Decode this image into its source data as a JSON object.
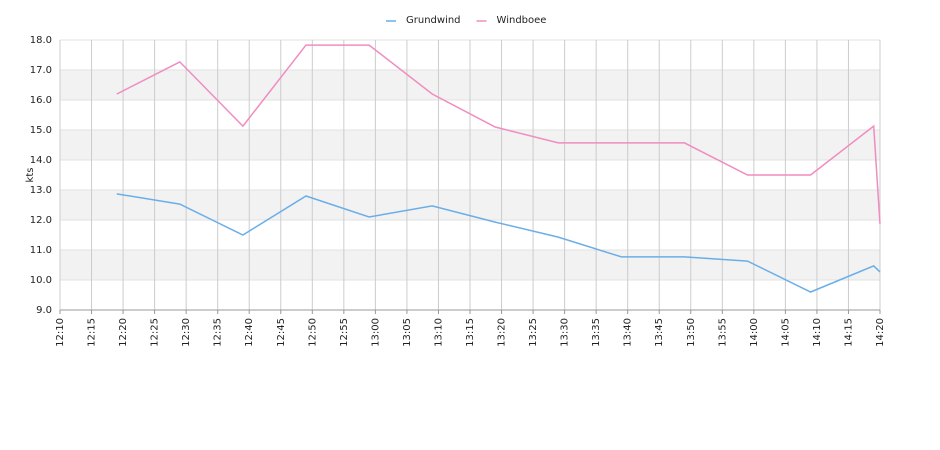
{
  "chart_data": {
    "type": "line",
    "y_label": "kts",
    "x": [
      "12:19",
      "12:29",
      "12:39",
      "12:49",
      "12:59",
      "13:09",
      "13:19",
      "13:29",
      "13:39",
      "13:49",
      "13:59",
      "14:09",
      "14:19",
      "14:20"
    ],
    "series": [
      {
        "name": "Grundwind",
        "color": "#6aaee8",
        "values": [
          12.87,
          12.53,
          11.5,
          12.8,
          12.1,
          12.47,
          11.93,
          11.43,
          10.77,
          10.77,
          10.63,
          9.6,
          10.47,
          10.27
        ]
      },
      {
        "name": "Windboee",
        "color": "#f08cc0",
        "values": [
          16.2,
          17.27,
          15.13,
          17.83,
          17.83,
          16.2,
          15.1,
          14.57,
          14.57,
          14.57,
          13.5,
          13.5,
          15.13,
          11.87
        ]
      }
    ],
    "xlim": [
      "12:10",
      "14:20"
    ],
    "xticks": [
      "12:10",
      "12:15",
      "12:20",
      "12:25",
      "12:30",
      "12:35",
      "12:40",
      "12:45",
      "12:50",
      "12:55",
      "13:00",
      "13:05",
      "13:10",
      "13:15",
      "13:20",
      "13:25",
      "13:30",
      "13:35",
      "13:40",
      "13:45",
      "13:50",
      "13:55",
      "14:00",
      "14:05",
      "14:10",
      "14:15",
      "14:20"
    ],
    "ylim": [
      9,
      18
    ],
    "yticks": [
      {
        "value": 9,
        "label": "9.0"
      },
      {
        "value": 10,
        "label": "10.0"
      },
      {
        "value": 11,
        "label": "11.0"
      },
      {
        "value": 12,
        "label": "12.0"
      },
      {
        "value": 13,
        "label": "13.0"
      },
      {
        "value": 14,
        "label": "14.0"
      },
      {
        "value": 15,
        "label": "15.0"
      },
      {
        "value": 16,
        "label": "16.0"
      },
      {
        "value": 17,
        "label": "17.0"
      },
      {
        "value": 18,
        "label": "18.0"
      }
    ],
    "grid": true,
    "legend": "top"
  }
}
